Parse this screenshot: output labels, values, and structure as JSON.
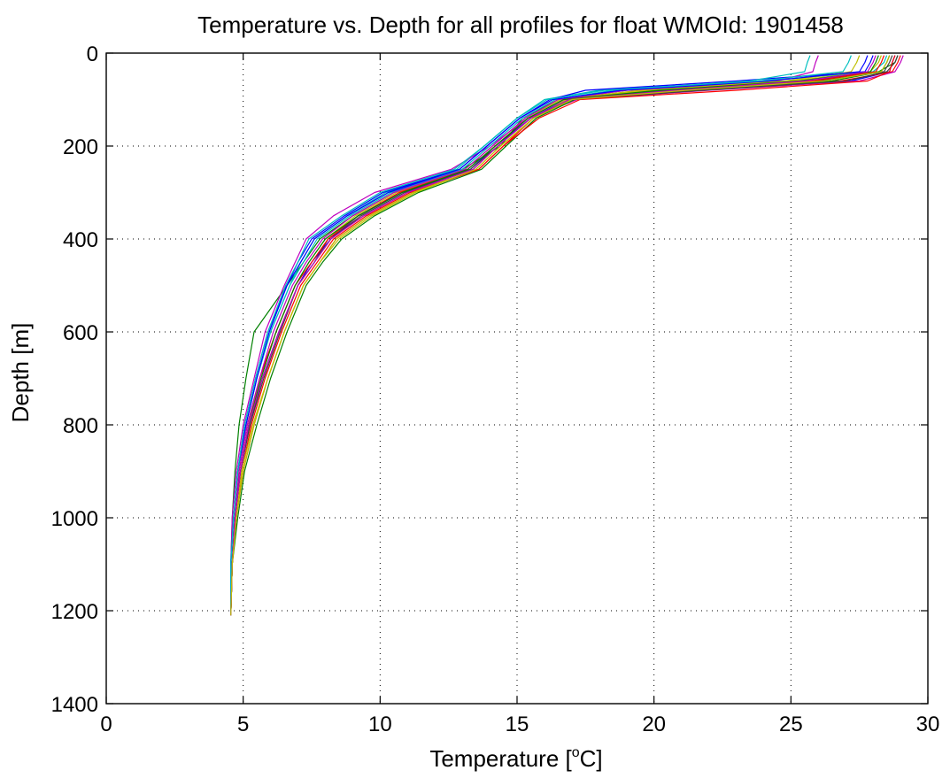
{
  "chart_data": {
    "type": "line",
    "title": "Temperature vs. Depth for all profiles for float WMOId: 1901458",
    "xlabel": "Temperature [°C]",
    "xlabel_parts": {
      "pre": "Temperature [",
      "sup": "o",
      "post": "C]"
    },
    "ylabel": "Depth [m]",
    "xlim": [
      0,
      30
    ],
    "ylim": [
      0,
      1400
    ],
    "y_reversed": true,
    "grid": true,
    "xticks": [
      0,
      5,
      10,
      15,
      20,
      25,
      30
    ],
    "yticks": [
      0,
      200,
      400,
      600,
      800,
      1000,
      1200,
      1400
    ],
    "xtick_labels": [
      "0",
      "5",
      "10",
      "15",
      "20",
      "25",
      "30"
    ],
    "ytick_labels": [
      "0",
      "200",
      "400",
      "600",
      "800",
      "1000",
      "1200",
      "1400"
    ],
    "colors": [
      "#0000ff",
      "#008000",
      "#ff0000",
      "#00bfbf",
      "#bf00bf",
      "#bfbf00",
      "#404040"
    ],
    "series": [
      {
        "depth": [
          5,
          20,
          40,
          60,
          80,
          100,
          140,
          200,
          250,
          300,
          350,
          400,
          450,
          500,
          600,
          700,
          800,
          900,
          1000,
          1100,
          1210
        ],
        "temperature": [
          28.8,
          28.7,
          28.6,
          27.2,
          20.0,
          16.8,
          15.5,
          14.2,
          13.3,
          10.8,
          9.2,
          8.2,
          7.5,
          7.0,
          6.3,
          5.7,
          5.2,
          4.9,
          4.7,
          4.6,
          4.55
        ]
      },
      {
        "depth": [
          5,
          20,
          40,
          60,
          80,
          100,
          140,
          200,
          250,
          300,
          350,
          400,
          450,
          500,
          600,
          700,
          800,
          900,
          1000,
          1100,
          1210
        ],
        "temperature": [
          28.9,
          28.8,
          28.2,
          25.5,
          19.0,
          16.5,
          15.2,
          14.4,
          13.0,
          10.5,
          9.0,
          7.8,
          7.2,
          6.6,
          5.4,
          5.1,
          4.85,
          4.7,
          4.6,
          4.55,
          4.55
        ]
      },
      {
        "depth": [
          5,
          20,
          40,
          60,
          80,
          100,
          140,
          200,
          250,
          300,
          350,
          400,
          450,
          500,
          600,
          700,
          800,
          900,
          1000,
          1100,
          1210
        ],
        "temperature": [
          29.0,
          28.9,
          28.7,
          26.8,
          21.0,
          17.0,
          15.6,
          14.5,
          13.6,
          11.2,
          9.6,
          8.4,
          7.8,
          7.2,
          6.5,
          5.9,
          5.4,
          5.0,
          4.75,
          4.6,
          4.55
        ]
      },
      {
        "depth": [
          5,
          20,
          40,
          60,
          80,
          100,
          140,
          200,
          250,
          300,
          350,
          400,
          450,
          500,
          600,
          700,
          800,
          900,
          1000,
          1100,
          1210
        ],
        "temperature": [
          28.5,
          28.4,
          28.0,
          24.0,
          18.0,
          16.0,
          15.0,
          13.8,
          12.8,
          10.2,
          8.8,
          7.6,
          7.1,
          6.7,
          6.0,
          5.5,
          5.1,
          4.8,
          4.65,
          4.55,
          4.55
        ]
      },
      {
        "depth": [
          5,
          20,
          40,
          60,
          80,
          100,
          140,
          200,
          250,
          300,
          350,
          400,
          450,
          500,
          600,
          700,
          800,
          900,
          1000,
          1100,
          1210
        ],
        "temperature": [
          29.1,
          29.0,
          28.8,
          27.5,
          22.0,
          17.2,
          15.4,
          14.0,
          12.6,
          9.8,
          8.3,
          7.3,
          6.9,
          6.5,
          5.8,
          5.4,
          5.0,
          4.75,
          4.6,
          4.55,
          4.55
        ]
      },
      {
        "depth": [
          5,
          20,
          40,
          60,
          80,
          100,
          140,
          200,
          250,
          300,
          350,
          400,
          450,
          500,
          600,
          700,
          800,
          900,
          1000,
          1100,
          1210
        ],
        "temperature": [
          28.3,
          28.2,
          27.9,
          25.0,
          19.5,
          16.6,
          15.3,
          14.1,
          13.1,
          10.6,
          9.1,
          8.0,
          7.4,
          6.9,
          6.2,
          5.6,
          5.2,
          4.9,
          4.7,
          4.6,
          4.55
        ]
      },
      {
        "depth": [
          5,
          20,
          40,
          60,
          80,
          100,
          140,
          200,
          250,
          300,
          350,
          400,
          450,
          500,
          600,
          700,
          800,
          900,
          1000,
          1100,
          1210
        ],
        "temperature": [
          28.7,
          28.6,
          28.4,
          26.0,
          20.5,
          16.9,
          15.5,
          14.3,
          13.4,
          11.0,
          9.4,
          8.1,
          7.6,
          7.0,
          6.3,
          5.7,
          5.25,
          4.9,
          4.7,
          4.6,
          4.55
        ]
      },
      {
        "depth": [
          5,
          20,
          40,
          60,
          80,
          100,
          140,
          200,
          250,
          300,
          350,
          400,
          450,
          500,
          600,
          700,
          800,
          900,
          1000,
          1100,
          1210
        ],
        "temperature": [
          28.0,
          27.9,
          27.7,
          23.0,
          17.5,
          16.2,
          15.1,
          13.9,
          12.9,
          10.1,
          8.7,
          7.5,
          7.0,
          6.6,
          5.9,
          5.45,
          5.05,
          4.8,
          4.65,
          4.55,
          4.55
        ]
      },
      {
        "depth": [
          5,
          20,
          40,
          60,
          80,
          100,
          140,
          200,
          250,
          300,
          350,
          400,
          450,
          500,
          600,
          700,
          800,
          900,
          1000,
          1100,
          1210
        ],
        "temperature": [
          28.6,
          28.5,
          28.3,
          26.5,
          21.5,
          17.1,
          15.7,
          14.6,
          13.7,
          11.4,
          9.8,
          8.6,
          7.9,
          7.3,
          6.6,
          6.0,
          5.5,
          5.05,
          4.8,
          4.6,
          4.55
        ]
      },
      {
        "depth": [
          5,
          20,
          40,
          60,
          80,
          100,
          140,
          200,
          250,
          300,
          350,
          400,
          450,
          500,
          600,
          700,
          800,
          900,
          1000,
          1100,
          1210
        ],
        "temperature": [
          28.4,
          28.3,
          28.1,
          25.8,
          20.0,
          16.7,
          15.4,
          14.2,
          13.2,
          10.7,
          9.2,
          8.1,
          7.5,
          6.9,
          6.2,
          5.6,
          5.15,
          4.85,
          4.7,
          4.6,
          4.55
        ]
      },
      {
        "depth": [
          5,
          20,
          40,
          60,
          80,
          100,
          140,
          200,
          250,
          300,
          350,
          400,
          450,
          500,
          600,
          700,
          800,
          900,
          1000,
          1100,
          1210
        ],
        "temperature": [
          25.7,
          25.6,
          25.5,
          23.5,
          18.5,
          16.4,
          15.2,
          14.0,
          13.0,
          10.4,
          8.9,
          7.7,
          7.2,
          6.7,
          6.0,
          5.5,
          5.1,
          4.8,
          4.65,
          4.55,
          4.55
        ]
      },
      {
        "depth": [
          5,
          20,
          40,
          60,
          80,
          100,
          140,
          200,
          250,
          300,
          350,
          400,
          450,
          500,
          600,
          700,
          800,
          900,
          1000,
          1100,
          1210
        ],
        "temperature": [
          26.0,
          25.9,
          25.8,
          24.5,
          19.0,
          16.5,
          15.3,
          14.1,
          13.1,
          10.5,
          9.0,
          7.9,
          7.3,
          6.8,
          6.1,
          5.6,
          5.15,
          4.85,
          4.7,
          4.6,
          4.55
        ]
      },
      {
        "depth": [
          5,
          20,
          40,
          60,
          80,
          100,
          140,
          200,
          250,
          300,
          350,
          400,
          450,
          500,
          600,
          700,
          800,
          900,
          1000,
          1100,
          1210
        ],
        "temperature": [
          27.5,
          27.4,
          27.2,
          24.8,
          19.8,
          16.8,
          15.6,
          14.4,
          13.5,
          11.3,
          9.7,
          8.5,
          7.8,
          7.2,
          6.5,
          5.9,
          5.4,
          5.0,
          4.75,
          4.6,
          4.55
        ]
      },
      {
        "depth": [
          5,
          20,
          40,
          60,
          80,
          100,
          140,
          200,
          250,
          300,
          350,
          400,
          450,
          500,
          600,
          700,
          800,
          900,
          1000,
          1100,
          1210
        ],
        "temperature": [
          28.9,
          28.8,
          28.5,
          27.0,
          21.8,
          17.0,
          15.5,
          14.3,
          13.3,
          10.9,
          9.3,
          8.2,
          7.6,
          7.0,
          6.35,
          5.75,
          5.25,
          4.9,
          4.7,
          4.6,
          4.55
        ]
      },
      {
        "depth": [
          5,
          20,
          40,
          60,
          80,
          100,
          140,
          200,
          250,
          300,
          350,
          400,
          450,
          500,
          600,
          700,
          800,
          900,
          1000,
          1100,
          1210
        ],
        "temperature": [
          27.8,
          27.7,
          27.5,
          24.2,
          18.8,
          16.3,
          15.1,
          13.9,
          12.9,
          10.3,
          8.8,
          7.6,
          7.1,
          6.6,
          5.95,
          5.5,
          5.1,
          4.8,
          4.65,
          4.55,
          4.55
        ]
      },
      {
        "depth": [
          5,
          20,
          40,
          60,
          80,
          100,
          140,
          200,
          250,
          300,
          350,
          400,
          450,
          500,
          600,
          700,
          800,
          900,
          1000,
          1100,
          1210
        ],
        "temperature": [
          28.2,
          28.1,
          27.9,
          25.3,
          20.2,
          16.7,
          15.4,
          14.2,
          13.2,
          10.8,
          9.2,
          8.0,
          7.4,
          6.9,
          6.2,
          5.65,
          5.2,
          4.9,
          4.7,
          4.6,
          4.55
        ]
      },
      {
        "depth": [
          5,
          20,
          40,
          60,
          80,
          100,
          140,
          200,
          250,
          300,
          350,
          400,
          450,
          500,
          600,
          700,
          800,
          900,
          1000,
          1100,
          1210
        ],
        "temperature": [
          28.8,
          28.7,
          28.6,
          27.8,
          23.0,
          17.3,
          15.8,
          14.5,
          13.6,
          11.1,
          9.5,
          8.3,
          7.7,
          7.1,
          6.4,
          5.8,
          5.3,
          4.95,
          4.75,
          4.6,
          4.55
        ]
      },
      {
        "depth": [
          5,
          20,
          40,
          60,
          80,
          100,
          140,
          200,
          250,
          300,
          350,
          400,
          450,
          500,
          600,
          700,
          800,
          900,
          1000,
          1100,
          1210
        ],
        "temperature": [
          27.2,
          27.1,
          26.9,
          23.8,
          18.2,
          16.1,
          15.0,
          13.8,
          12.7,
          10.0,
          8.6,
          7.4,
          7.0,
          6.55,
          5.9,
          5.45,
          5.05,
          4.8,
          4.65,
          4.55,
          4.55
        ]
      },
      {
        "depth": [
          5,
          20,
          40,
          60,
          80,
          100,
          140,
          200,
          250,
          300,
          350,
          400,
          450,
          500,
          600,
          700,
          800,
          900,
          1000,
          1100,
          1210
        ],
        "temperature": [
          28.1,
          28.0,
          27.8,
          25.5,
          20.8,
          16.9,
          15.5,
          14.3,
          13.4,
          11.0,
          9.4,
          8.2,
          7.6,
          7.0,
          6.3,
          5.7,
          5.2,
          4.9,
          4.7,
          4.6,
          4.55
        ]
      },
      {
        "depth": [
          5,
          20,
          40,
          60,
          80,
          100,
          140,
          200,
          250,
          300,
          350,
          400,
          450,
          500,
          600,
          700,
          800,
          900,
          1000,
          1100,
          1210
        ],
        "temperature": [
          28.6,
          28.5,
          28.3,
          26.2,
          21.2,
          17.0,
          15.6,
          14.4,
          13.5,
          11.2,
          9.6,
          8.4,
          7.8,
          7.2,
          6.5,
          5.9,
          5.35,
          4.95,
          4.75,
          4.6,
          4.55
        ]
      }
    ]
  }
}
